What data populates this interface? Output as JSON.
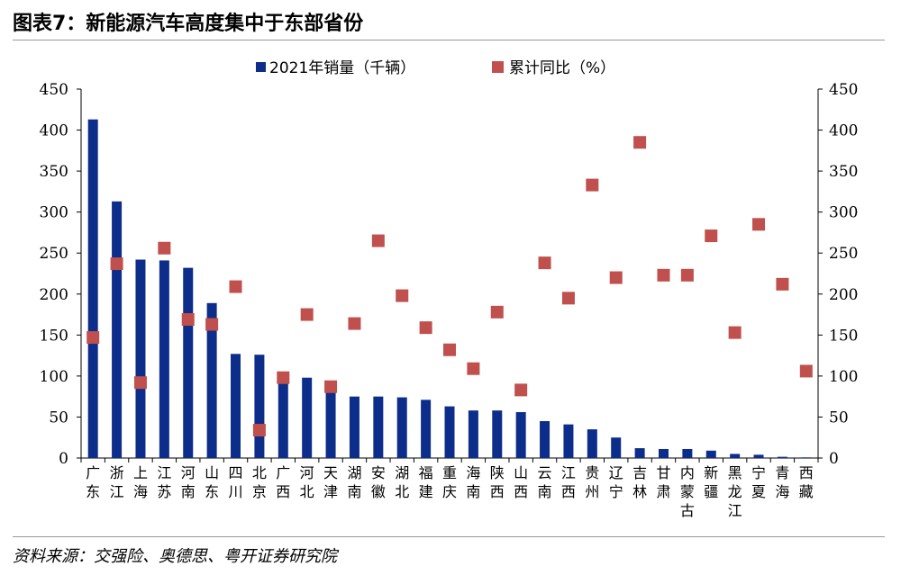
{
  "figure_title": "图表7：新能源汽车高度集中于东部省份",
  "source": "资料来源：交强险、奥德思、粤开证券研究院",
  "colors": {
    "bar": "#0d2d8a",
    "marker": "#c0504d",
    "rule": "#999999",
    "axis": "#000000"
  },
  "chart_data": {
    "type": "bar",
    "categories": [
      "广东",
      "浙江",
      "上海",
      "江苏",
      "河南",
      "山东",
      "四川",
      "北京",
      "广西",
      "河北",
      "天津",
      "湖南",
      "安徽",
      "湖北",
      "福建",
      "重庆",
      "海南",
      "陕西",
      "山西",
      "云南",
      "江西",
      "贵州",
      "辽宁",
      "吉林",
      "甘肃",
      "内蒙古",
      "新疆",
      "黑龙江",
      "宁夏",
      "青海",
      "西藏"
    ],
    "series": [
      {
        "name": "2021年销量（千辆）",
        "type": "bar",
        "axis": "left",
        "values": [
          413,
          313,
          242,
          241,
          232,
          189,
          127,
          126,
          95,
          98,
          83,
          75,
          75,
          74,
          71,
          63,
          58,
          58,
          56,
          45,
          41,
          35,
          25,
          12,
          11,
          11,
          9,
          5,
          4,
          1.5,
          0.8
        ]
      },
      {
        "name": "累计同比（%）",
        "type": "scatter",
        "axis": "right",
        "values": [
          147,
          237,
          92,
          256,
          169,
          163,
          209,
          34,
          98,
          175,
          87,
          164,
          265,
          198,
          159,
          132,
          109,
          178,
          83,
          238,
          195,
          333,
          220,
          385,
          223,
          223,
          271,
          153,
          285,
          212,
          106
        ]
      }
    ],
    "ylim_left": [
      0,
      450
    ],
    "ylim_right": [
      0,
      450
    ],
    "yticks": [
      0,
      50,
      100,
      150,
      200,
      250,
      300,
      350,
      400,
      450
    ],
    "legend_position": "top-center",
    "grid": false
  }
}
